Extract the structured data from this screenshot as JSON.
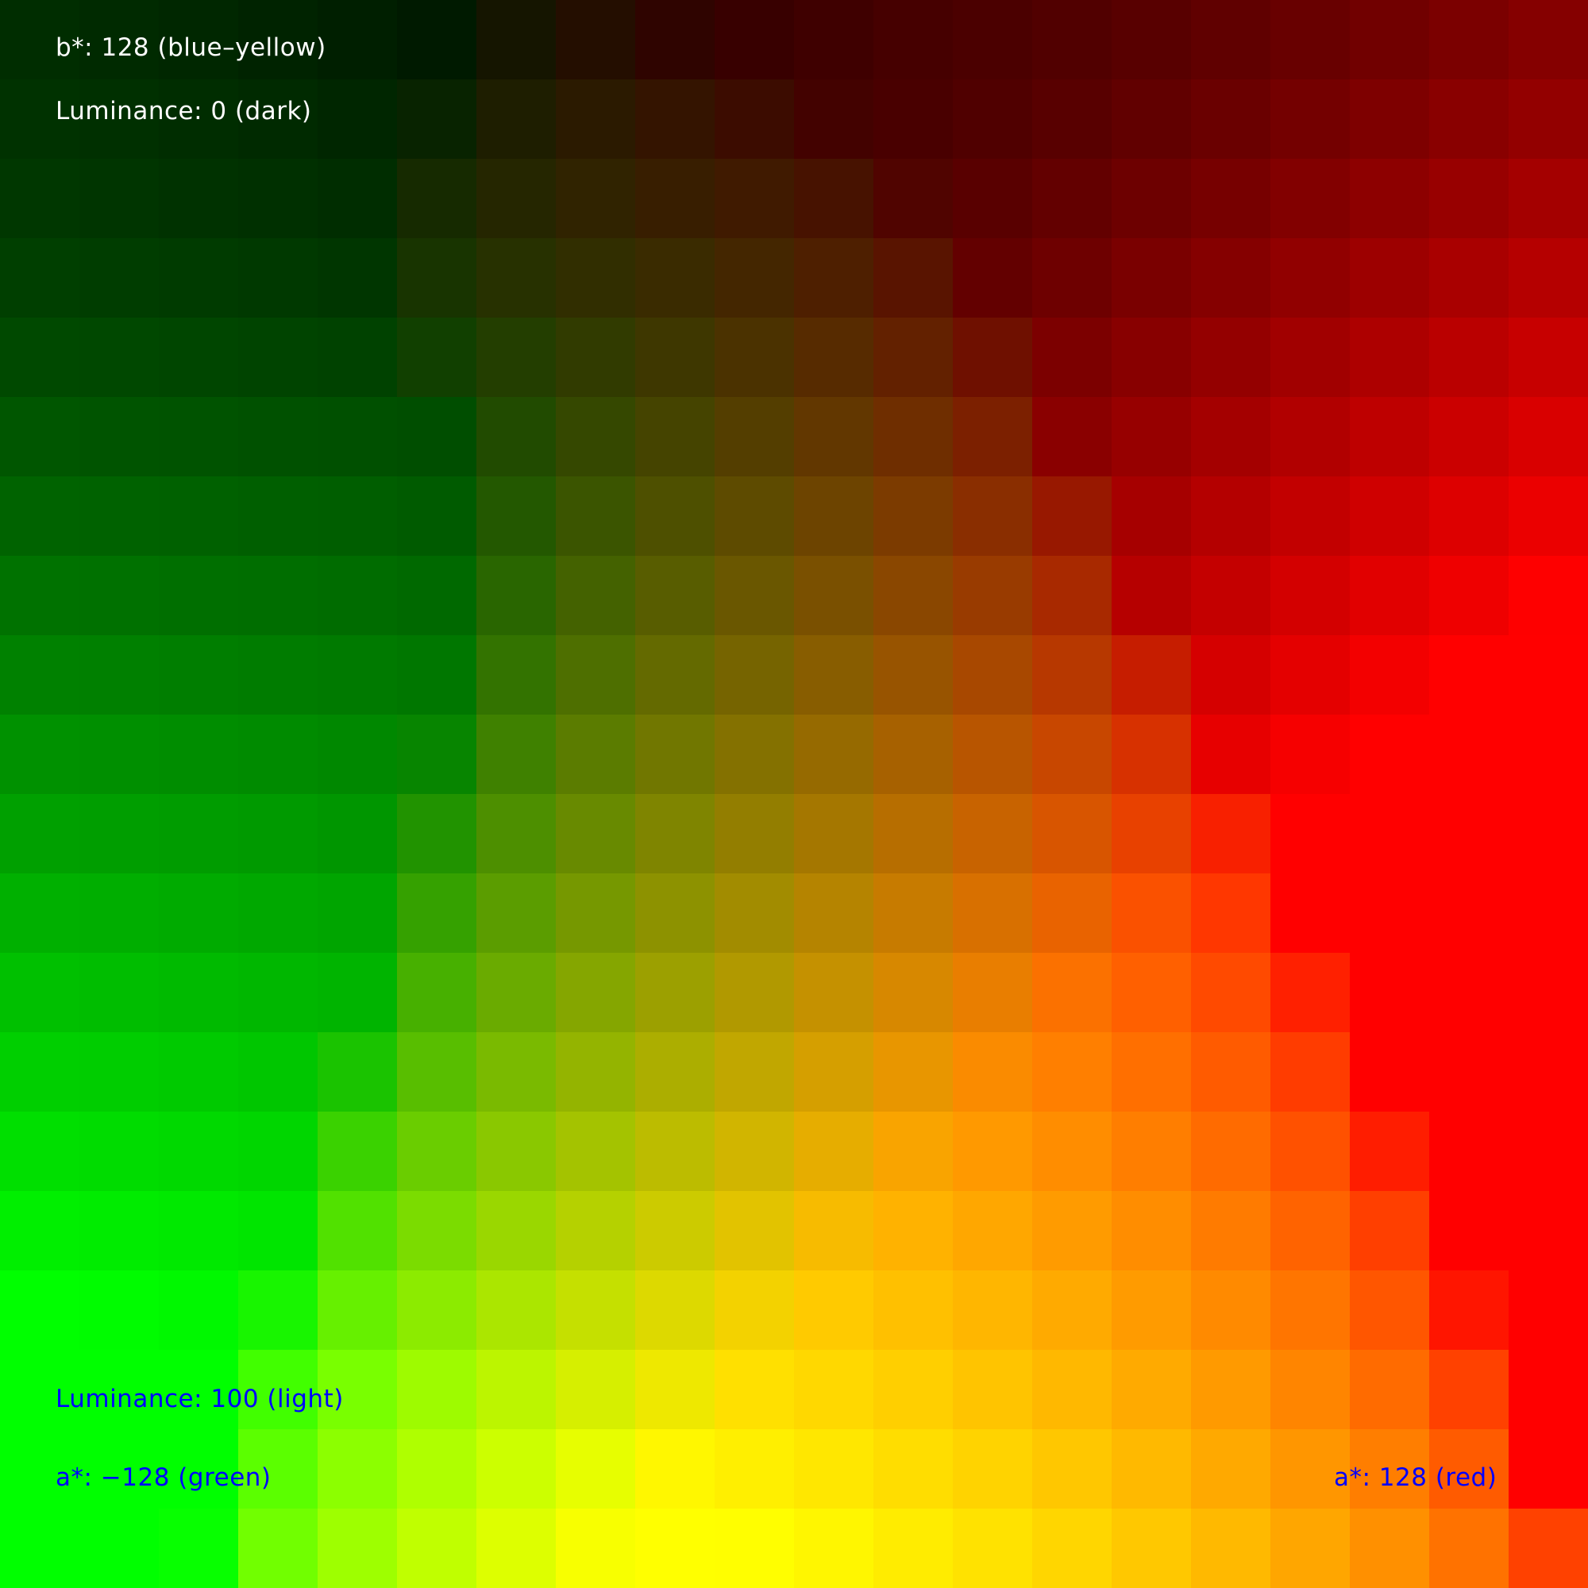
{
  "chart_data": {
    "type": "heatmap",
    "description_axes": {
      "x_axis_quantity": "a*",
      "y_axis_quantity": "Luminance",
      "fixed_quantity": "b*"
    },
    "grid": {
      "cols": 20,
      "rows": 20,
      "x_range": [
        -128,
        128
      ],
      "y_range": [
        0,
        100
      ],
      "b_value": 128
    },
    "annotations": {
      "b_label": "b*: 128 (blue–yellow)",
      "lum_top": "Luminance: 0 (dark)",
      "lum_bottom": "Luminance: 100 (light)",
      "a_left": "a*: −128 (green)",
      "a_right": "a*: 128 (red)"
    },
    "colors": {
      "top_label": "#ffffff",
      "bottom_label": "#0000ff"
    }
  }
}
